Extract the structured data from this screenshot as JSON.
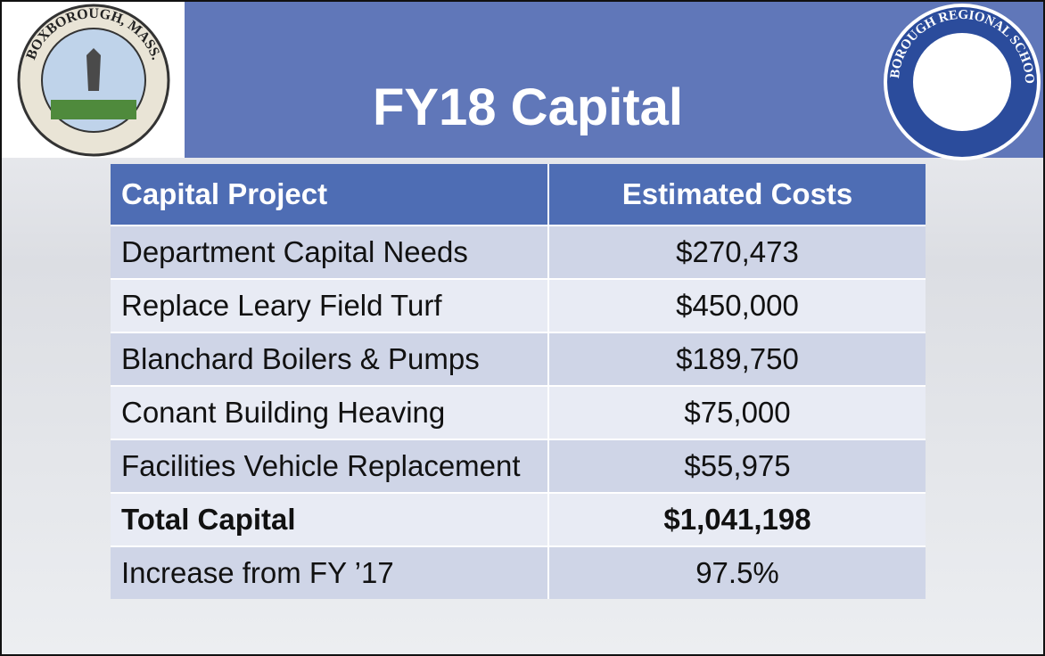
{
  "header": {
    "title": "FY18 Capital",
    "left_seal": "BOXBOROUGH, MASS.",
    "right_seal": "ACTON-BOXBOROUGH REGIONAL SCHOOL DISTRICT"
  },
  "table": {
    "columns": [
      "Capital Project",
      "Estimated Costs"
    ],
    "rows": [
      [
        "Department Capital Needs",
        "$270,473"
      ],
      [
        "Replace Leary Field Turf",
        "$450,000"
      ],
      [
        "Blanchard Boilers & Pumps",
        "$189,750"
      ],
      [
        "Conant Building Heaving",
        "$75,000"
      ],
      [
        "Facilities Vehicle Replacement",
        "$55,975"
      ],
      [
        "Total Capital",
        "$1,041,198"
      ],
      [
        "Increase from FY ’17",
        "97.5%"
      ]
    ],
    "bold_rows": [
      5
    ]
  }
}
